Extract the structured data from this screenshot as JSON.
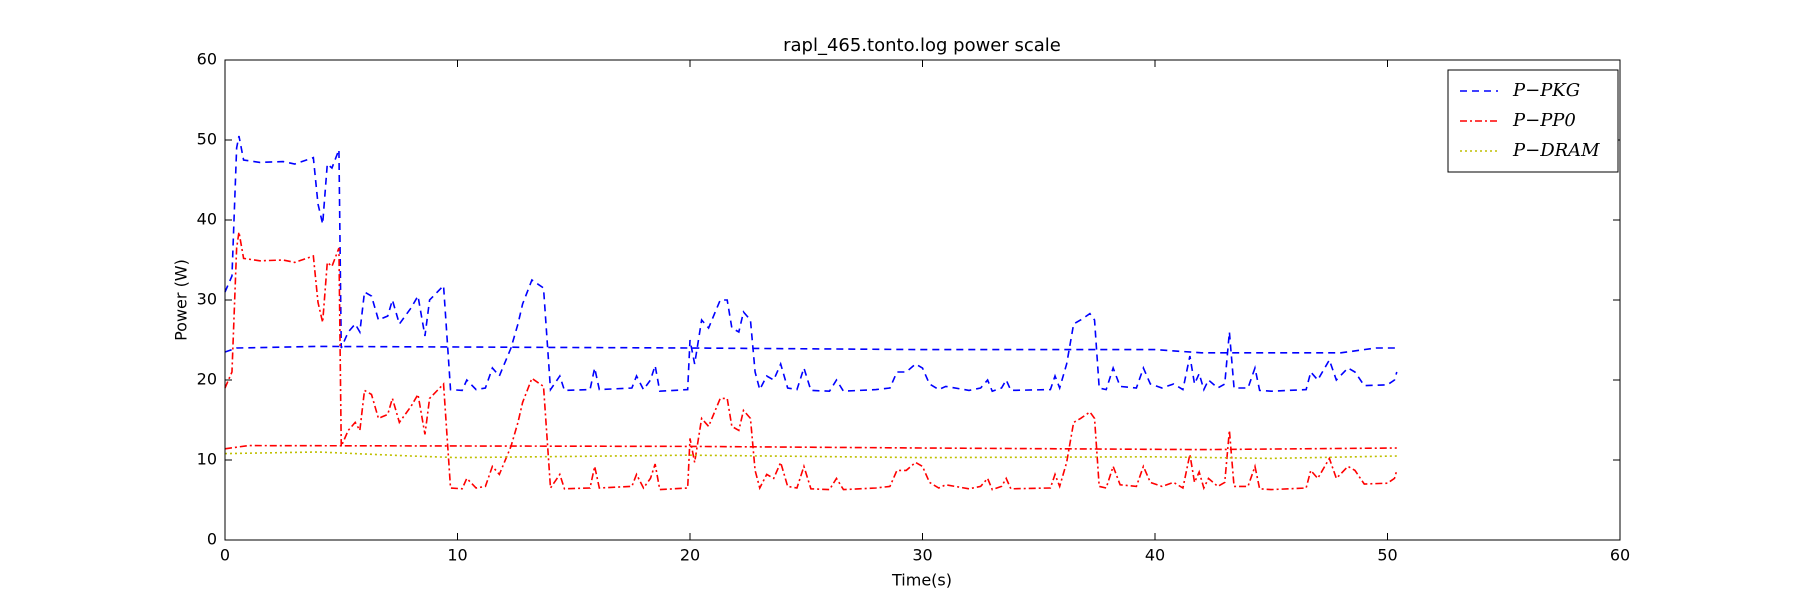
{
  "chart_data": {
    "type": "line",
    "title": "rapl_465.tonto.log power scale",
    "xlabel": "Time(s)",
    "ylabel": "Power (W)",
    "xlim": [
      0,
      60
    ],
    "ylim": [
      0,
      60
    ],
    "xticks": [
      0,
      10,
      20,
      30,
      40,
      50,
      60
    ],
    "yticks": [
      0,
      10,
      20,
      30,
      40,
      50,
      60
    ],
    "grid": false,
    "legend": "upper right",
    "x": [
      0,
      0.3,
      0.5,
      0.6,
      0.8,
      1.5,
      2.5,
      3,
      3.8,
      4,
      4.2,
      4.4,
      4.6,
      4.9,
      5,
      5.3,
      5.6,
      5.8,
      6,
      6.3,
      6.6,
      7,
      7.2,
      7.5,
      8,
      8.3,
      8.6,
      8.8,
      9.4,
      9.7,
      10.2,
      10.4,
      10.8,
      11.2,
      11.5,
      11.8,
      12.3,
      12.6,
      12.8,
      13.2,
      13.7,
      14,
      14.4,
      14.6,
      15.7,
      15.9,
      16.1,
      17.5,
      17.7,
      18,
      18.3,
      18.5,
      18.7,
      19.9,
      20,
      20.2,
      20.5,
      20.8,
      21.3,
      21.6,
      21.8,
      22.1,
      22.3,
      22.6,
      22.8,
      23,
      23.3,
      23.6,
      23.9,
      24.2,
      24.6,
      24.9,
      25.2,
      26,
      26.3,
      26.6,
      28,
      28.6,
      28.9,
      29.3,
      29.7,
      30,
      30.3,
      30.7,
      31,
      32,
      32.5,
      32.8,
      33,
      33.4,
      33.6,
      33.8,
      35.5,
      35.7,
      35.9,
      36.2,
      36.5,
      36.8,
      37.2,
      37.4,
      37.6,
      37.9,
      38.2,
      38.5,
      39.2,
      39.5,
      39.8,
      40.3,
      40.8,
      41.2,
      41.5,
      41.7,
      41.9,
      42.1,
      42.3,
      42.7,
      43,
      43.2,
      43.4,
      44,
      44.3,
      44.5,
      45,
      46.5,
      46.7,
      47,
      47.5,
      47.8,
      48.3,
      48.6,
      49,
      50,
      50.3,
      50.4
    ],
    "series": [
      {
        "name": "P−PKG",
        "color": "#0000ff",
        "linestyle": "dashed",
        "values": [
          31,
          33,
          49,
          50.5,
          47.5,
          47.2,
          47.3,
          47,
          47.8,
          42,
          39.5,
          47,
          46.5,
          48.8,
          24,
          26,
          27,
          26,
          31,
          30.5,
          27.5,
          28,
          30,
          27,
          29,
          30.5,
          25.5,
          30,
          31.8,
          18.8,
          18.7,
          20,
          18.8,
          19,
          21.5,
          20.5,
          24,
          27,
          29.5,
          32.5,
          31.5,
          18.8,
          20.5,
          18.7,
          18.8,
          21.5,
          18.8,
          19,
          20.5,
          18.8,
          20,
          21.8,
          18.6,
          18.8,
          25,
          22,
          27.5,
          26.5,
          30,
          30,
          26.5,
          26,
          28.5,
          27.5,
          21,
          18.8,
          20.5,
          20,
          22,
          19,
          18.8,
          21.5,
          18.7,
          18.6,
          20,
          18.6,
          18.8,
          19,
          21,
          21,
          22,
          21.5,
          19.5,
          18.8,
          19.2,
          18.7,
          19,
          20,
          18.6,
          19,
          20,
          18.7,
          18.8,
          20.5,
          19,
          22,
          27,
          27.5,
          28.3,
          27.5,
          19,
          18.8,
          21.5,
          19.2,
          19,
          21.5,
          19.5,
          19,
          19.5,
          18.8,
          23,
          19.5,
          20.8,
          18.8,
          20,
          19,
          19.5,
          26,
          19,
          19,
          21.5,
          18.7,
          18.6,
          18.8,
          21,
          20,
          22.5,
          20,
          21.5,
          21,
          19.3,
          19.4,
          20,
          21
        ]
      },
      {
        "name": "P−PP0",
        "color": "#ff0000",
        "linestyle": "dashdot",
        "values": [
          19,
          21,
          36.5,
          38.5,
          35.2,
          34.9,
          35,
          34.7,
          35.5,
          29.7,
          27.2,
          34.7,
          34.2,
          36.5,
          11.7,
          13.7,
          14.7,
          13.7,
          18.7,
          18.2,
          15.2,
          15.7,
          17.7,
          14.7,
          16.7,
          18.2,
          13.2,
          17.7,
          19.5,
          6.5,
          6.4,
          7.7,
          6.5,
          6.7,
          9.2,
          8.2,
          11.7,
          14.7,
          17.2,
          20.2,
          19.2,
          6.5,
          8.2,
          6.4,
          6.5,
          9.2,
          6.5,
          6.7,
          8.2,
          6.5,
          7.7,
          9.5,
          6.3,
          6.5,
          12.7,
          9.7,
          15.2,
          14.2,
          17.7,
          17.7,
          14.2,
          13.7,
          16.2,
          15.2,
          8.7,
          6.5,
          8.2,
          7.7,
          9.7,
          6.7,
          6.5,
          9.2,
          6.4,
          6.3,
          7.7,
          6.3,
          6.5,
          6.7,
          8.7,
          8.7,
          9.7,
          9.2,
          7.2,
          6.5,
          6.9,
          6.4,
          6.7,
          7.7,
          6.3,
          6.7,
          7.7,
          6.4,
          6.5,
          8.2,
          6.7,
          9.7,
          14.7,
          15.2,
          16,
          15.2,
          6.7,
          6.5,
          9.2,
          6.9,
          6.7,
          9.2,
          7.2,
          6.7,
          7.2,
          6.5,
          10.7,
          7.2,
          8.5,
          6.5,
          7.7,
          6.7,
          7.2,
          13.7,
          6.7,
          6.7,
          9.2,
          6.4,
          6.3,
          6.5,
          8.7,
          7.7,
          10.2,
          7.7,
          9.2,
          8.7,
          7,
          7.1,
          7.7,
          8.7
        ]
      },
      {
        "name": "P−DRAM",
        "color": "#bfbf00",
        "linestyle": "dotted",
        "x": [
          0,
          4,
          8,
          10,
          20,
          30,
          40,
          45,
          50.4
        ],
        "values": [
          10.8,
          11,
          10.5,
          10.3,
          10.6,
          10.3,
          10.4,
          10.2,
          10.5
        ]
      },
      {
        "color": "#0000ff",
        "linestyle": "dashed",
        "x": [
          0,
          0.5,
          4,
          20,
          30,
          40,
          42,
          48,
          49.5,
          50.4
        ],
        "values": [
          23.5,
          24,
          24.2,
          24,
          23.8,
          23.8,
          23.4,
          23.4,
          24,
          24
        ]
      },
      {
        "color": "#ff0000",
        "linestyle": "dashdot",
        "x": [
          0,
          1,
          20,
          30,
          42,
          50.4
        ],
        "values": [
          11.4,
          11.8,
          11.7,
          11.5,
          11.3,
          11.5
        ]
      }
    ]
  }
}
